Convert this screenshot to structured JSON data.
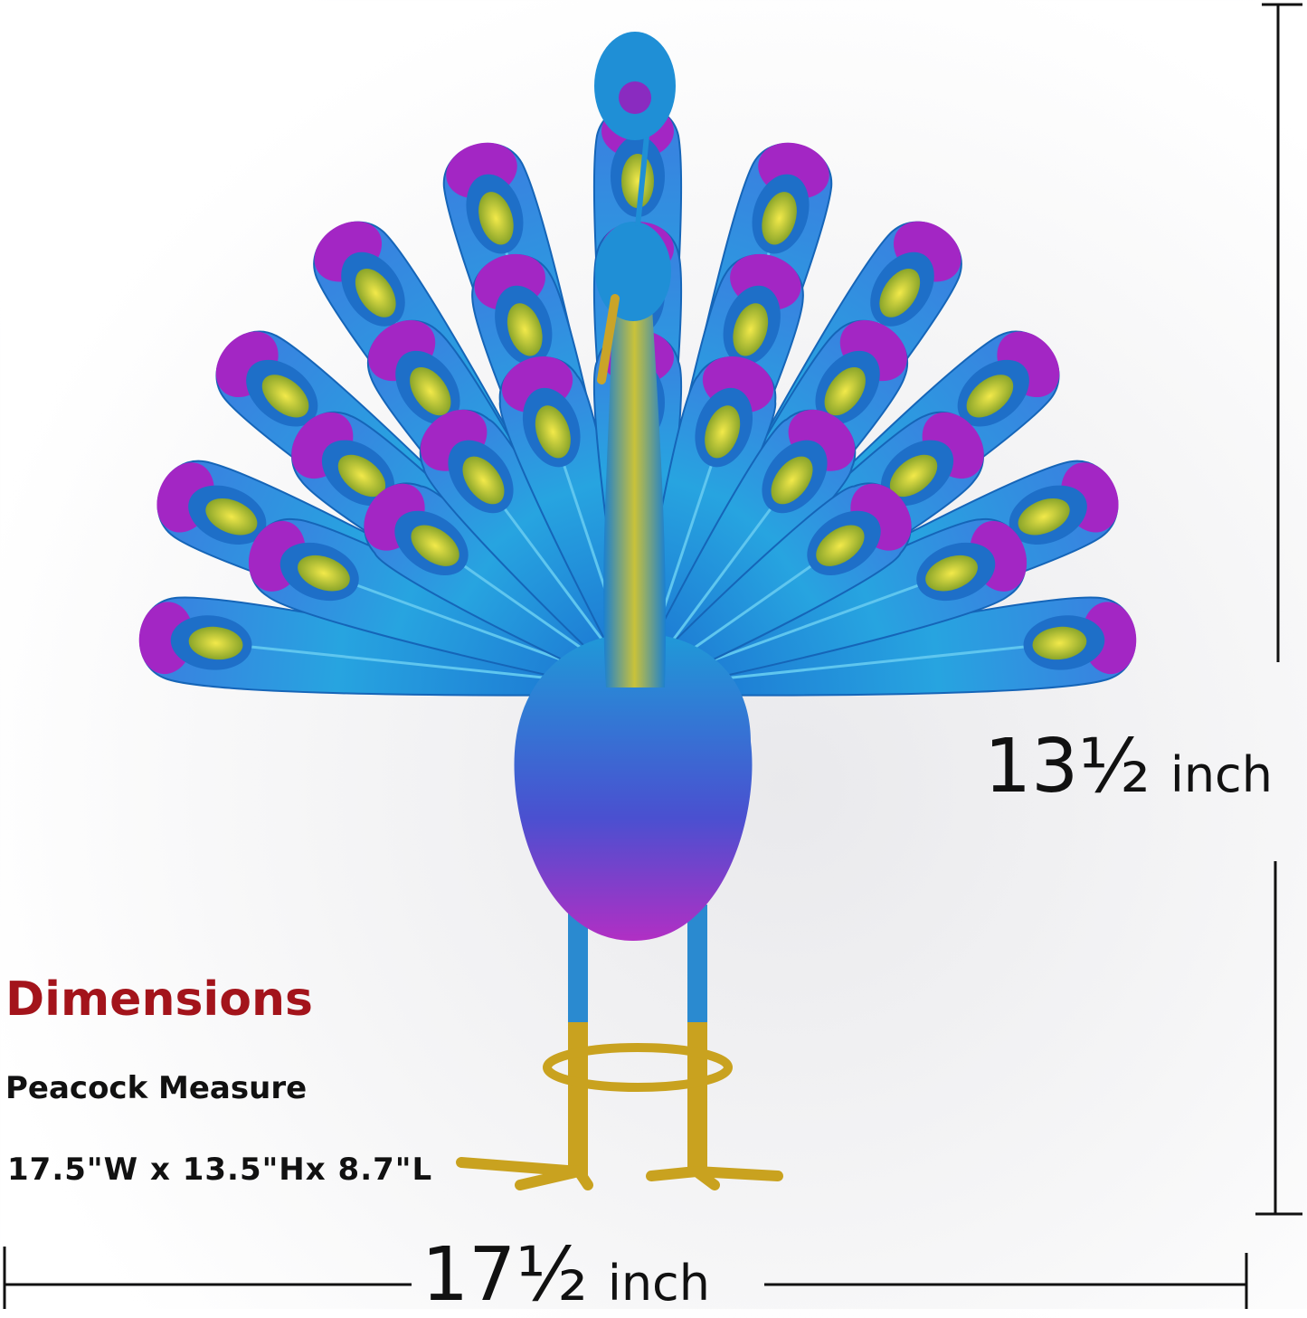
{
  "product": "peacock-sculpture",
  "colors": {
    "feather_blue": "#1f8fd6",
    "feather_purple": "#a326c4",
    "eye_yellow": "#d9d23a",
    "legs_gold": "#c9a21f",
    "title_red": "#a3141b"
  },
  "height_label": {
    "value": "13½",
    "unit": "inch"
  },
  "width_label": {
    "value": "17½",
    "unit": "inch"
  },
  "dimensions": {
    "title": "Dimensions",
    "subtitle": "Peacock Measure",
    "measure": "17.5\"W x 13.5\"Hx 8.7\"L"
  }
}
